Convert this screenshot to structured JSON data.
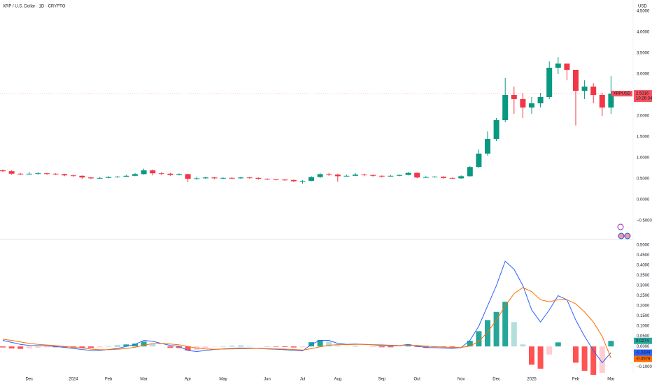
{
  "chart_data": [
    {
      "type": "candlestick",
      "title": "XRP / U.S. Dollar · 1D · CRYPTO",
      "currency": "USD",
      "symbol": "XRPUSD",
      "last_price": 2.5316,
      "countdown": "10:26:34",
      "categories": [
        null,
        null,
        null,
        "Dec",
        null,
        null,
        null,
        null,
        "2024",
        null,
        null,
        null,
        "Feb",
        null,
        null,
        null,
        "Mar",
        null,
        null,
        null,
        null,
        "Apr",
        null,
        null,
        null,
        "May",
        null,
        null,
        null,
        null,
        "Jun",
        null,
        null,
        null,
        "Jul",
        null,
        null,
        null,
        "Aug",
        null,
        null,
        null,
        null,
        "Sep",
        null,
        null,
        null,
        "Oct",
        null,
        null,
        null,
        null,
        "Nov",
        null,
        null,
        null,
        "Dec",
        null,
        null,
        null,
        "2025",
        null,
        null,
        null,
        null,
        "Feb",
        null,
        null,
        null,
        "Mar"
      ],
      "open": [
        0.7,
        0.68,
        0.62,
        0.61,
        0.62,
        0.63,
        0.62,
        0.61,
        0.58,
        0.57,
        0.53,
        0.51,
        0.52,
        0.54,
        0.55,
        0.57,
        0.61,
        0.7,
        0.63,
        0.62,
        0.59,
        0.61,
        0.5,
        0.51,
        0.53,
        0.51,
        0.52,
        0.51,
        0.53,
        0.52,
        0.5,
        0.49,
        0.48,
        0.47,
        0.44,
        0.45,
        0.54,
        0.61,
        0.6,
        0.56,
        0.57,
        0.6,
        0.59,
        0.57,
        0.56,
        0.57,
        0.59,
        0.64,
        0.53,
        0.54,
        0.55,
        0.52,
        0.51,
        0.56,
        0.78,
        1.1,
        1.45,
        1.9,
        2.5,
        2.4,
        2.2,
        2.3,
        2.45,
        3.15,
        3.25,
        3.1,
        2.6,
        2.7,
        2.5,
        2.2
      ],
      "high": [
        0.72,
        0.7,
        0.64,
        0.66,
        0.66,
        0.64,
        0.63,
        0.62,
        0.6,
        0.58,
        0.54,
        0.54,
        0.56,
        0.57,
        0.6,
        0.64,
        0.74,
        0.72,
        0.66,
        0.64,
        0.63,
        0.62,
        0.55,
        0.55,
        0.54,
        0.53,
        0.54,
        0.55,
        0.54,
        0.53,
        0.51,
        0.5,
        0.49,
        0.48,
        0.47,
        0.56,
        0.64,
        0.64,
        0.62,
        0.6,
        0.64,
        0.62,
        0.6,
        0.58,
        0.59,
        0.6,
        0.66,
        0.65,
        0.56,
        0.56,
        0.56,
        0.53,
        0.58,
        0.8,
        1.2,
        1.63,
        1.95,
        2.9,
        2.7,
        2.55,
        2.45,
        2.55,
        3.3,
        3.4,
        3.2,
        3.1,
        2.85,
        2.78,
        2.55,
        2.95
      ],
      "low": [
        0.66,
        0.6,
        0.59,
        0.6,
        0.6,
        0.59,
        0.59,
        0.56,
        0.55,
        0.5,
        0.49,
        0.5,
        0.51,
        0.53,
        0.54,
        0.56,
        0.6,
        0.58,
        0.59,
        0.57,
        0.58,
        0.42,
        0.48,
        0.5,
        0.49,
        0.49,
        0.5,
        0.5,
        0.5,
        0.48,
        0.47,
        0.46,
        0.45,
        0.42,
        0.38,
        0.44,
        0.52,
        0.57,
        0.43,
        0.55,
        0.56,
        0.56,
        0.55,
        0.53,
        0.55,
        0.56,
        0.58,
        0.51,
        0.52,
        0.53,
        0.5,
        0.5,
        0.5,
        0.55,
        0.76,
        1.05,
        1.4,
        1.85,
        2.05,
        1.95,
        2.05,
        2.2,
        2.4,
        3.0,
        2.85,
        1.77,
        2.4,
        2.3,
        2.0,
        2.05
      ],
      "close": [
        0.68,
        0.62,
        0.61,
        0.62,
        0.63,
        0.62,
        0.61,
        0.58,
        0.57,
        0.53,
        0.51,
        0.52,
        0.54,
        0.55,
        0.57,
        0.61,
        0.7,
        0.63,
        0.62,
        0.59,
        0.61,
        0.5,
        0.51,
        0.53,
        0.51,
        0.52,
        0.51,
        0.53,
        0.52,
        0.5,
        0.49,
        0.48,
        0.47,
        0.44,
        0.45,
        0.54,
        0.61,
        0.6,
        0.56,
        0.57,
        0.6,
        0.59,
        0.57,
        0.56,
        0.57,
        0.59,
        0.64,
        0.53,
        0.54,
        0.55,
        0.52,
        0.51,
        0.56,
        0.78,
        1.1,
        1.45,
        1.9,
        2.5,
        2.4,
        2.2,
        2.3,
        2.45,
        3.15,
        3.25,
        3.1,
        2.6,
        2.7,
        2.5,
        2.2,
        2.53
      ],
      "up_color": "#089981",
      "down_color": "#f23645",
      "grid": false,
      "ylim": [
        -0.9,
        4.7
      ],
      "yticks": [
        {
          "value": -0.5,
          "label": "−0.5000"
        },
        {
          "value": 0,
          "label": "0.0000"
        },
        {
          "value": 0.5,
          "label": "0.5000"
        },
        {
          "value": 1,
          "label": "1.0000"
        },
        {
          "value": 1.5,
          "label": "1.5000"
        },
        {
          "value": 2,
          "label": "2.0000"
        },
        {
          "value": 3,
          "label": "3.0000"
        },
        {
          "value": 3.5,
          "label": "3.5000"
        },
        {
          "value": 4,
          "label": "4.0000"
        },
        {
          "value": 4.5,
          "label": "4.5000"
        }
      ]
    },
    {
      "type": "macd",
      "series": [
        {
          "color": "#2962ff",
          "values": [
            0.03,
            0.02,
            0.01,
            0.005,
            0.004,
            0.003,
            0,
            -0.005,
            -0.01,
            -0.015,
            -0.02,
            -0.02,
            -0.015,
            -0.01,
            0,
            0.01,
            0.03,
            0.025,
            0.015,
            0.005,
            0,
            -0.02,
            -0.025,
            -0.02,
            -0.015,
            -0.012,
            -0.01,
            -0.008,
            -0.008,
            -0.01,
            -0.012,
            -0.014,
            -0.016,
            -0.02,
            -0.022,
            0.01,
            0.03,
            0.03,
            0.015,
            0.01,
            0.012,
            0.01,
            0.008,
            0.004,
            0.002,
            0.004,
            0.01,
            0.002,
            -0.005,
            -0.006,
            -0.008,
            -0.01,
            -0.006,
            0.03,
            0.1,
            0.2,
            0.3,
            0.42,
            0.38,
            0.3,
            0.18,
            0.12,
            0.18,
            0.25,
            0.23,
            0.13,
            0.05,
            -0.02,
            -0.08,
            -0.0304
          ]
        },
        {
          "color": "#ff6d00",
          "values": [
            0.035,
            0.03,
            0.022,
            0.015,
            0.01,
            0.007,
            0.004,
            0,
            -0.004,
            -0.008,
            -0.013,
            -0.016,
            -0.016,
            -0.014,
            -0.01,
            -0.004,
            0.006,
            0.014,
            0.015,
            0.012,
            0.008,
            0,
            -0.008,
            -0.012,
            -0.014,
            -0.013,
            -0.012,
            -0.011,
            -0.01,
            -0.01,
            -0.011,
            -0.012,
            -0.013,
            -0.015,
            -0.018,
            -0.011,
            -0.002,
            0.006,
            0.009,
            0.009,
            0.01,
            0.01,
            0.009,
            0.008,
            0.006,
            0.005,
            0.006,
            0.005,
            0.002,
            -0.001,
            -0.003,
            -0.005,
            -0.005,
            0.002,
            0.025,
            0.07,
            0.13,
            0.2,
            0.26,
            0.29,
            0.27,
            0.23,
            0.22,
            0.23,
            0.23,
            0.21,
            0.17,
            0.12,
            0.05,
            -0.0578
          ]
        }
      ],
      "histogram": {
        "up_color": "#26a69a",
        "up_fade_color": "#b2dfdb",
        "down_color": "#ff5252",
        "down_fade_color": "#ffcdd2",
        "values": [
          -0.005,
          -0.01,
          -0.012,
          -0.01,
          -0.006,
          -0.004,
          -0.004,
          -0.005,
          -0.006,
          -0.007,
          -0.007,
          -0.004,
          0.001,
          0.004,
          0.01,
          0.014,
          0.024,
          0.011,
          0,
          -0.007,
          -0.008,
          -0.02,
          -0.017,
          -0.008,
          -0.001,
          0.001,
          0.002,
          0.003,
          0.002,
          0,
          -0.001,
          -0.002,
          -0.003,
          -0.005,
          -0.004,
          0.021,
          0.032,
          0.024,
          0.006,
          0.001,
          0.002,
          0,
          -0.001,
          -0.004,
          -0.004,
          -0.001,
          0.004,
          -0.003,
          -0.007,
          -0.005,
          -0.005,
          -0.005,
          -0.001,
          0.028,
          0.075,
          0.13,
          0.17,
          0.22,
          0.12,
          0.01,
          -0.09,
          -0.11,
          -0.04,
          0.02,
          0,
          -0.08,
          -0.12,
          -0.14,
          -0.13,
          0.0274
        ]
      },
      "ylim": [
        -0.13,
        0.52
      ],
      "yticks": [
        {
          "value": -0.1,
          "label": "−0.1000"
        },
        {
          "value": 0,
          "label": "0.0000"
        },
        {
          "value": 0.05,
          "label": "0.0500"
        },
        {
          "value": 0.1,
          "label": "0.1000"
        },
        {
          "value": 0.15,
          "label": "0.1500"
        },
        {
          "value": 0.2,
          "label": "0.2000"
        },
        {
          "value": 0.25,
          "label": "0.2500"
        },
        {
          "value": 0.3,
          "label": "0.3000"
        },
        {
          "value": 0.35,
          "label": "0.3500"
        },
        {
          "value": 0.4,
          "label": "0.4000"
        },
        {
          "value": 0.45,
          "label": "0.4500"
        },
        {
          "value": 0.5,
          "label": "0.5000"
        }
      ]
    }
  ]
}
